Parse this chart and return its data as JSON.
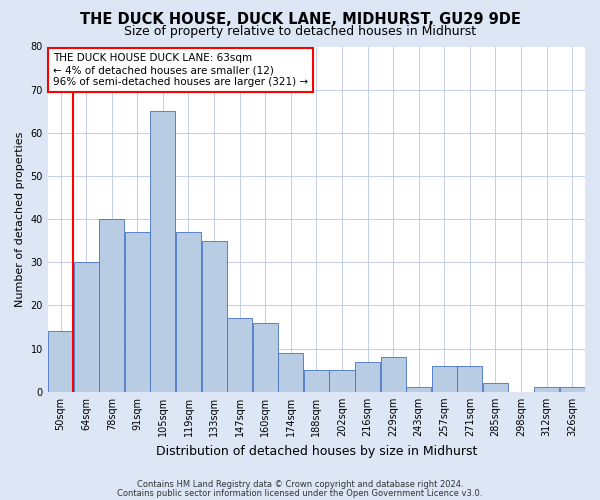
{
  "title": "THE DUCK HOUSE, DUCK LANE, MIDHURST, GU29 9DE",
  "subtitle": "Size of property relative to detached houses in Midhurst",
  "xlabel": "Distribution of detached houses by size in Midhurst",
  "ylabel": "Number of detached properties",
  "categories": [
    "50sqm",
    "64sqm",
    "78sqm",
    "91sqm",
    "105sqm",
    "119sqm",
    "133sqm",
    "147sqm",
    "160sqm",
    "174sqm",
    "188sqm",
    "202sqm",
    "216sqm",
    "229sqm",
    "243sqm",
    "257sqm",
    "271sqm",
    "285sqm",
    "298sqm",
    "312sqm",
    "326sqm"
  ],
  "values": [
    14,
    30,
    40,
    37,
    65,
    37,
    35,
    17,
    16,
    9,
    5,
    5,
    7,
    8,
    1,
    6,
    6,
    2,
    0,
    1,
    1
  ],
  "bar_color": "#b8cce4",
  "bar_edge_color": "#4472c4",
  "annotation_line1": "THE DUCK HOUSE DUCK LANE: 63sqm",
  "annotation_line2": "← 4% of detached houses are smaller (12)",
  "annotation_line3": "96% of semi-detached houses are larger (321) →",
  "vline_x": 0.5,
  "ylim": [
    0,
    80
  ],
  "yticks": [
    0,
    10,
    20,
    30,
    40,
    50,
    60,
    70,
    80
  ],
  "footer_line1": "Contains HM Land Registry data © Crown copyright and database right 2024.",
  "footer_line2": "Contains public sector information licensed under the Open Government Licence v3.0.",
  "bg_color": "#dce6f5",
  "plot_bg_color": "#ffffff",
  "grid_color": "#b8c8e0",
  "title_fontsize": 10.5,
  "subtitle_fontsize": 9,
  "xlabel_fontsize": 9,
  "ylabel_fontsize": 8,
  "tick_fontsize": 7,
  "annotation_fontsize": 7.5,
  "footer_fontsize": 6
}
